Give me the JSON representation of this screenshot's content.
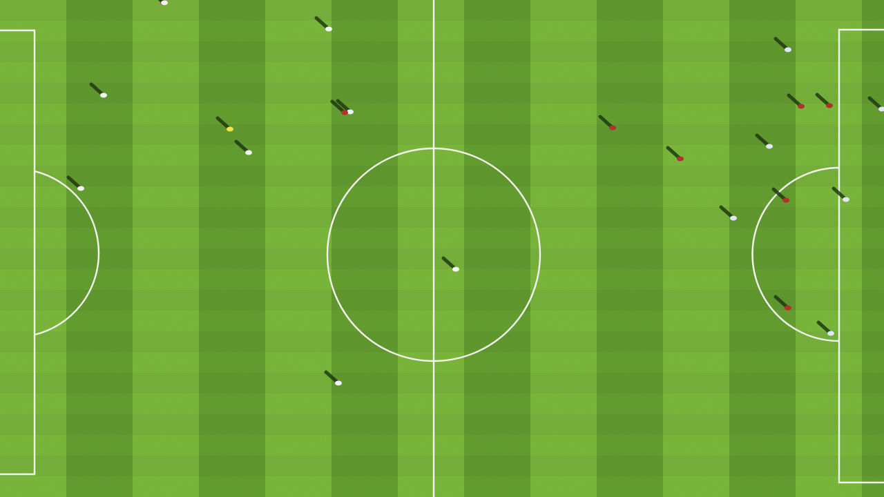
{
  "scene": {
    "description_visible_text": [],
    "colors": {
      "grass_light": "#76b436",
      "grass_dark": "#5f9a2a",
      "line": "#f4f7ee",
      "shadow": "#1f3a12",
      "team_white": "#f2f2f2",
      "team_red": "#b2322b",
      "team_blue": "#dfe7f5",
      "ball": "#f2e24a"
    },
    "players": [
      {
        "team": "red"
      },
      {
        "team": "white"
      },
      {
        "team": "white"
      },
      {
        "team": "white"
      },
      {
        "team": "yellow"
      },
      {
        "team": "white"
      },
      {
        "team": "white"
      },
      {
        "team": "red"
      },
      {
        "team": "white"
      },
      {
        "team": "white"
      },
      {
        "team": "white"
      },
      {
        "team": "blue"
      },
      {
        "team": "red"
      },
      {
        "team": "red"
      },
      {
        "team": "blue"
      },
      {
        "team": "red"
      },
      {
        "team": "red"
      },
      {
        "team": "blue"
      },
      {
        "team": "red"
      },
      {
        "team": "blue"
      },
      {
        "team": "blue"
      },
      {
        "team": "red"
      },
      {
        "team": "blue"
      }
    ]
  }
}
